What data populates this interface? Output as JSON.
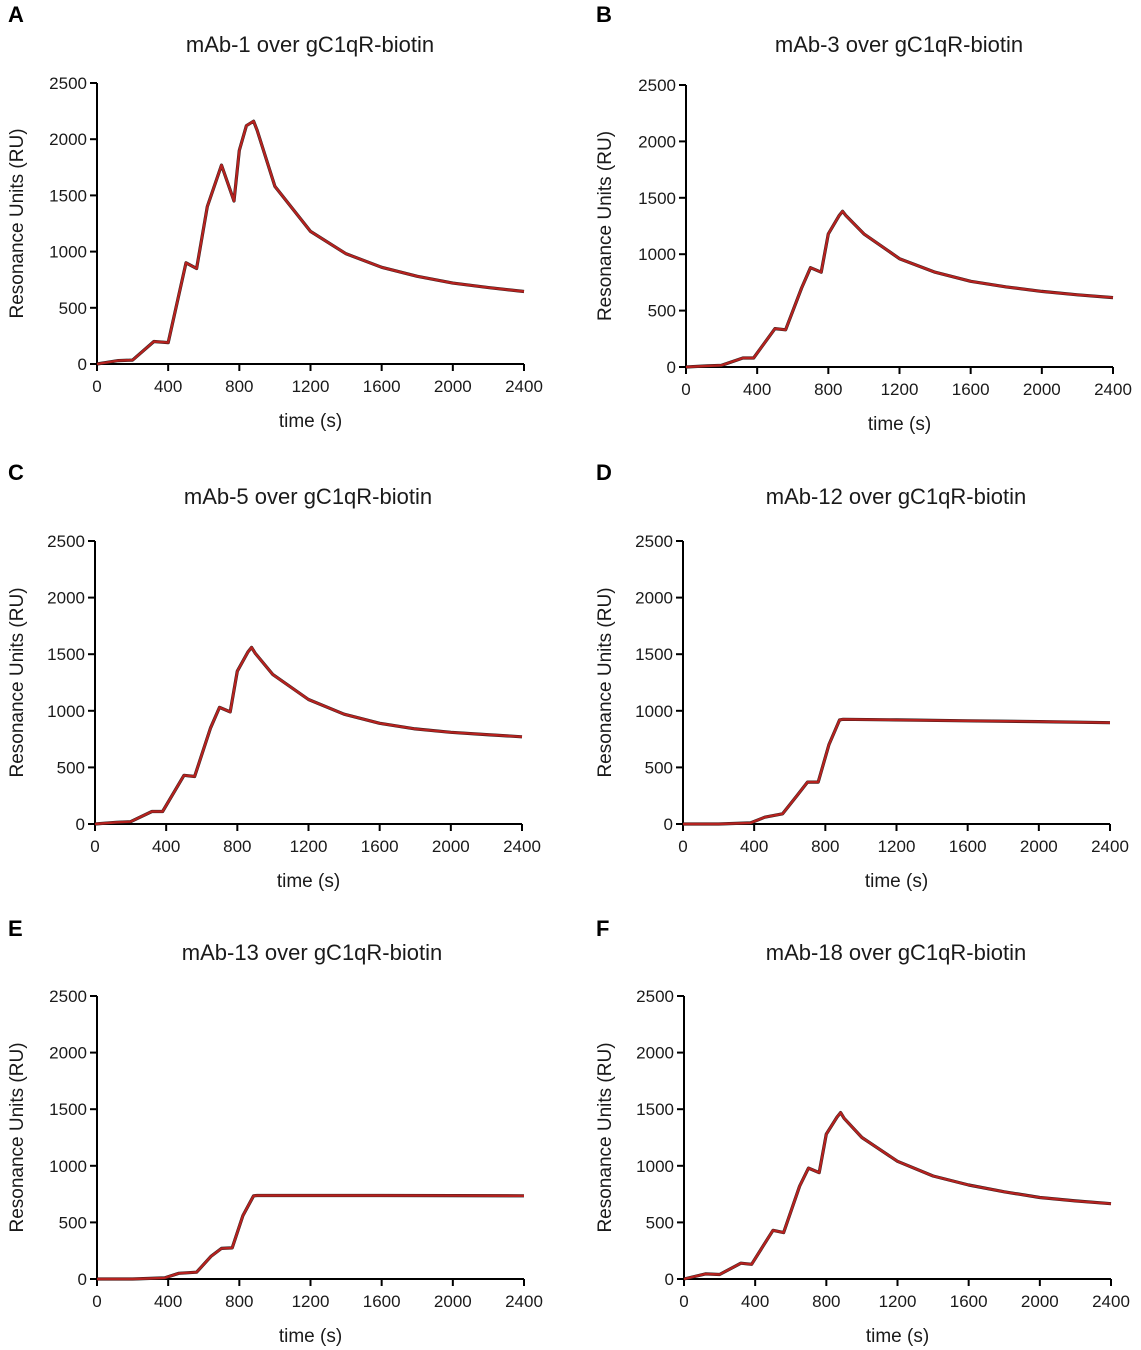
{
  "colors": {
    "measured": "#b5221f",
    "fit": "#1a1a1a",
    "axis": "#000000"
  },
  "chart_data": [
    {
      "type": "line",
      "panel": "A",
      "title": "mAb-1 over gC1qR-biotin",
      "xlabel": "time (s)",
      "ylabel": "Resonance Units  (RU)",
      "xlim": [
        0,
        2400
      ],
      "ylim": [
        0,
        2500
      ],
      "xticks": [
        0,
        400,
        800,
        1200,
        1600,
        2000,
        2400
      ],
      "yticks": [
        0,
        500,
        1000,
        1500,
        2000,
        2500
      ],
      "series": [
        {
          "name": "mAb-1",
          "x": [
            0,
            120,
            200,
            320,
            400,
            500,
            560,
            620,
            700,
            770,
            800,
            840,
            880,
            900,
            1000,
            1200,
            1400,
            1600,
            1800,
            2000,
            2200,
            2400
          ],
          "values": [
            0,
            30,
            35,
            200,
            190,
            900,
            850,
            1400,
            1770,
            1450,
            1900,
            2120,
            2160,
            2080,
            1580,
            1180,
            980,
            860,
            780,
            720,
            680,
            645
          ]
        }
      ]
    },
    {
      "type": "line",
      "panel": "B",
      "title": "mAb-3 over gC1qR-biotin",
      "xlabel": "time (s)",
      "ylabel": "Resonance Units  (RU)",
      "xlim": [
        0,
        2400
      ],
      "ylim": [
        0,
        2500
      ],
      "xticks": [
        0,
        400,
        800,
        1200,
        1600,
        2000,
        2400
      ],
      "yticks": [
        0,
        500,
        1000,
        1500,
        2000,
        2500
      ],
      "series": [
        {
          "name": "mAb-3",
          "x": [
            0,
            120,
            200,
            320,
            380,
            500,
            560,
            650,
            700,
            760,
            800,
            860,
            880,
            900,
            1000,
            1200,
            1400,
            1600,
            1800,
            2000,
            2200,
            2400
          ],
          "values": [
            0,
            10,
            15,
            80,
            80,
            340,
            330,
            700,
            880,
            840,
            1180,
            1340,
            1380,
            1340,
            1180,
            960,
            840,
            760,
            710,
            670,
            640,
            615
          ]
        }
      ]
    },
    {
      "type": "line",
      "panel": "C",
      "title": "mAb-5 over gC1qR-biotin",
      "xlabel": "time (s)",
      "ylabel": "Resonance Units  (RU)",
      "xlim": [
        0,
        2400
      ],
      "ylim": [
        0,
        2500
      ],
      "xticks": [
        0,
        400,
        800,
        1200,
        1600,
        2000,
        2400
      ],
      "yticks": [
        0,
        500,
        1000,
        1500,
        2000,
        2500
      ],
      "series": [
        {
          "name": "mAb-5",
          "x": [
            0,
            120,
            200,
            320,
            380,
            500,
            560,
            650,
            700,
            760,
            800,
            860,
            880,
            900,
            1000,
            1200,
            1400,
            1600,
            1800,
            2000,
            2200,
            2400
          ],
          "values": [
            0,
            15,
            20,
            110,
            110,
            430,
            420,
            850,
            1030,
            990,
            1350,
            1520,
            1560,
            1510,
            1320,
            1100,
            970,
            890,
            840,
            810,
            790,
            770
          ]
        }
      ]
    },
    {
      "type": "line",
      "panel": "D",
      "title": "mAb-12 over gC1qR-biotin",
      "xlabel": "time (s)",
      "ylabel": "Resonance Units  (RU)",
      "xlim": [
        0,
        2400
      ],
      "ylim": [
        0,
        2500
      ],
      "xticks": [
        0,
        400,
        800,
        1200,
        1600,
        2000,
        2400
      ],
      "yticks": [
        0,
        500,
        1000,
        1500,
        2000,
        2500
      ],
      "series": [
        {
          "name": "mAb-12",
          "x": [
            0,
            200,
            380,
            460,
            560,
            640,
            700,
            760,
            820,
            880,
            900,
            1200,
            1600,
            2000,
            2400
          ],
          "values": [
            0,
            0,
            10,
            60,
            90,
            250,
            370,
            370,
            700,
            920,
            925,
            920,
            912,
            905,
            895
          ]
        }
      ]
    },
    {
      "type": "line",
      "panel": "E",
      "title": "mAb-13 over gC1qR-biotin",
      "xlabel": "time (s)",
      "ylabel": "Resonance Units  (RU)",
      "xlim": [
        0,
        2400
      ],
      "ylim": [
        0,
        2500
      ],
      "xticks": [
        0,
        400,
        800,
        1200,
        1600,
        2000,
        2400
      ],
      "yticks": [
        0,
        500,
        1000,
        1500,
        2000,
        2500
      ],
      "series": [
        {
          "name": "mAb-13",
          "x": [
            0,
            200,
            380,
            460,
            560,
            640,
            700,
            760,
            820,
            880,
            900,
            1200,
            1600,
            2000,
            2400
          ],
          "values": [
            0,
            0,
            10,
            50,
            60,
            200,
            270,
            275,
            560,
            735,
            738,
            738,
            738,
            737,
            735
          ]
        }
      ]
    },
    {
      "type": "line",
      "panel": "F",
      "title": "mAb-18 over gC1qR-biotin",
      "xlabel": "time (s)",
      "ylabel": "Resonance Units  (RU)",
      "xlim": [
        0,
        2400
      ],
      "ylim": [
        0,
        2500
      ],
      "xticks": [
        0,
        400,
        800,
        1200,
        1600,
        2000,
        2400
      ],
      "yticks": [
        0,
        500,
        1000,
        1500,
        2000,
        2500
      ],
      "series": [
        {
          "name": "mAb-18",
          "x": [
            0,
            120,
            200,
            320,
            380,
            500,
            560,
            650,
            700,
            760,
            800,
            860,
            880,
            900,
            1000,
            1200,
            1400,
            1600,
            1800,
            2000,
            2200,
            2400
          ],
          "values": [
            0,
            45,
            40,
            140,
            130,
            430,
            410,
            820,
            980,
            940,
            1280,
            1430,
            1470,
            1420,
            1250,
            1040,
            910,
            830,
            770,
            720,
            690,
            665
          ]
        }
      ]
    }
  ]
}
